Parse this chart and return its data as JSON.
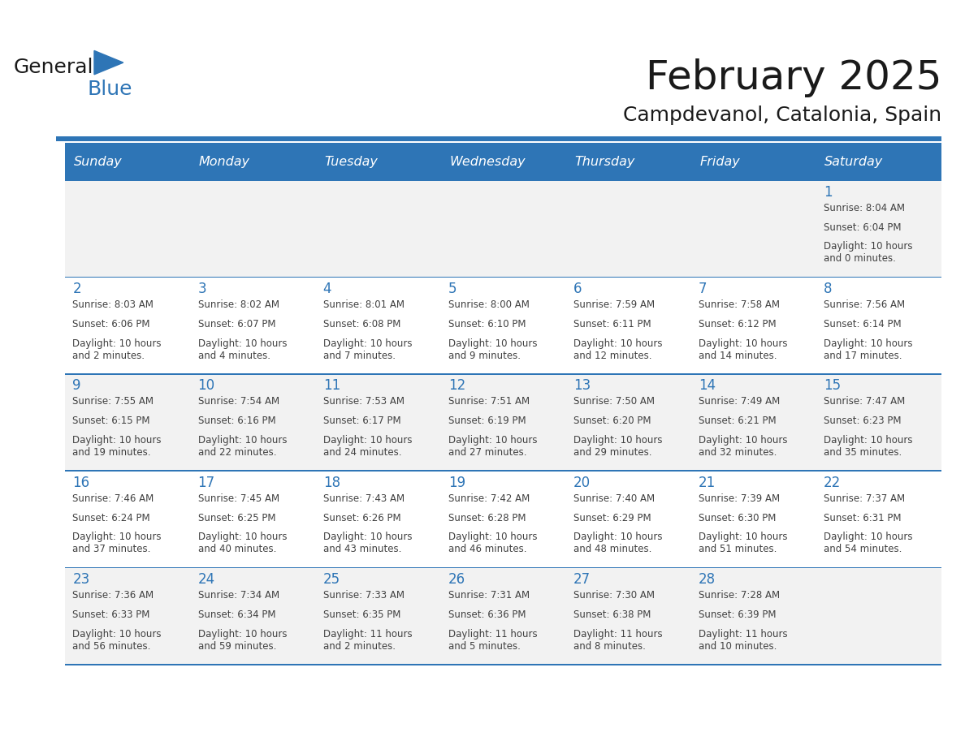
{
  "title": "February 2025",
  "subtitle": "Campdevanol, Catalonia, Spain",
  "days_of_week": [
    "Sunday",
    "Monday",
    "Tuesday",
    "Wednesday",
    "Thursday",
    "Friday",
    "Saturday"
  ],
  "header_bg": "#2E75B6",
  "header_text": "#FFFFFF",
  "cell_bg_light": "#FFFFFF",
  "cell_bg_dark": "#F2F2F2",
  "border_color": "#2E75B6",
  "day_number_color": "#2E75B6",
  "info_text_color": "#404040",
  "title_color": "#1a1a1a",
  "subtitle_color": "#1a1a1a",
  "calendar": [
    [
      {
        "day": null,
        "sunrise": null,
        "sunset": null,
        "daylight": null
      },
      {
        "day": null,
        "sunrise": null,
        "sunset": null,
        "daylight": null
      },
      {
        "day": null,
        "sunrise": null,
        "sunset": null,
        "daylight": null
      },
      {
        "day": null,
        "sunrise": null,
        "sunset": null,
        "daylight": null
      },
      {
        "day": null,
        "sunrise": null,
        "sunset": null,
        "daylight": null
      },
      {
        "day": null,
        "sunrise": null,
        "sunset": null,
        "daylight": null
      },
      {
        "day": 1,
        "sunrise": "8:04 AM",
        "sunset": "6:04 PM",
        "daylight": "10 hours\nand 0 minutes."
      }
    ],
    [
      {
        "day": 2,
        "sunrise": "8:03 AM",
        "sunset": "6:06 PM",
        "daylight": "10 hours\nand 2 minutes."
      },
      {
        "day": 3,
        "sunrise": "8:02 AM",
        "sunset": "6:07 PM",
        "daylight": "10 hours\nand 4 minutes."
      },
      {
        "day": 4,
        "sunrise": "8:01 AM",
        "sunset": "6:08 PM",
        "daylight": "10 hours\nand 7 minutes."
      },
      {
        "day": 5,
        "sunrise": "8:00 AM",
        "sunset": "6:10 PM",
        "daylight": "10 hours\nand 9 minutes."
      },
      {
        "day": 6,
        "sunrise": "7:59 AM",
        "sunset": "6:11 PM",
        "daylight": "10 hours\nand 12 minutes."
      },
      {
        "day": 7,
        "sunrise": "7:58 AM",
        "sunset": "6:12 PM",
        "daylight": "10 hours\nand 14 minutes."
      },
      {
        "day": 8,
        "sunrise": "7:56 AM",
        "sunset": "6:14 PM",
        "daylight": "10 hours\nand 17 minutes."
      }
    ],
    [
      {
        "day": 9,
        "sunrise": "7:55 AM",
        "sunset": "6:15 PM",
        "daylight": "10 hours\nand 19 minutes."
      },
      {
        "day": 10,
        "sunrise": "7:54 AM",
        "sunset": "6:16 PM",
        "daylight": "10 hours\nand 22 minutes."
      },
      {
        "day": 11,
        "sunrise": "7:53 AM",
        "sunset": "6:17 PM",
        "daylight": "10 hours\nand 24 minutes."
      },
      {
        "day": 12,
        "sunrise": "7:51 AM",
        "sunset": "6:19 PM",
        "daylight": "10 hours\nand 27 minutes."
      },
      {
        "day": 13,
        "sunrise": "7:50 AM",
        "sunset": "6:20 PM",
        "daylight": "10 hours\nand 29 minutes."
      },
      {
        "day": 14,
        "sunrise": "7:49 AM",
        "sunset": "6:21 PM",
        "daylight": "10 hours\nand 32 minutes."
      },
      {
        "day": 15,
        "sunrise": "7:47 AM",
        "sunset": "6:23 PM",
        "daylight": "10 hours\nand 35 minutes."
      }
    ],
    [
      {
        "day": 16,
        "sunrise": "7:46 AM",
        "sunset": "6:24 PM",
        "daylight": "10 hours\nand 37 minutes."
      },
      {
        "day": 17,
        "sunrise": "7:45 AM",
        "sunset": "6:25 PM",
        "daylight": "10 hours\nand 40 minutes."
      },
      {
        "day": 18,
        "sunrise": "7:43 AM",
        "sunset": "6:26 PM",
        "daylight": "10 hours\nand 43 minutes."
      },
      {
        "day": 19,
        "sunrise": "7:42 AM",
        "sunset": "6:28 PM",
        "daylight": "10 hours\nand 46 minutes."
      },
      {
        "day": 20,
        "sunrise": "7:40 AM",
        "sunset": "6:29 PM",
        "daylight": "10 hours\nand 48 minutes."
      },
      {
        "day": 21,
        "sunrise": "7:39 AM",
        "sunset": "6:30 PM",
        "daylight": "10 hours\nand 51 minutes."
      },
      {
        "day": 22,
        "sunrise": "7:37 AM",
        "sunset": "6:31 PM",
        "daylight": "10 hours\nand 54 minutes."
      }
    ],
    [
      {
        "day": 23,
        "sunrise": "7:36 AM",
        "sunset": "6:33 PM",
        "daylight": "10 hours\nand 56 minutes."
      },
      {
        "day": 24,
        "sunrise": "7:34 AM",
        "sunset": "6:34 PM",
        "daylight": "10 hours\nand 59 minutes."
      },
      {
        "day": 25,
        "sunrise": "7:33 AM",
        "sunset": "6:35 PM",
        "daylight": "11 hours\nand 2 minutes."
      },
      {
        "day": 26,
        "sunrise": "7:31 AM",
        "sunset": "6:36 PM",
        "daylight": "11 hours\nand 5 minutes."
      },
      {
        "day": 27,
        "sunrise": "7:30 AM",
        "sunset": "6:38 PM",
        "daylight": "11 hours\nand 8 minutes."
      },
      {
        "day": 28,
        "sunrise": "7:28 AM",
        "sunset": "6:39 PM",
        "daylight": "11 hours\nand 10 minutes."
      },
      {
        "day": null,
        "sunrise": null,
        "sunset": null,
        "daylight": null
      }
    ]
  ],
  "logo_text_general": "General",
  "logo_text_blue": "Blue",
  "logo_color_general": "#1a1a1a",
  "logo_color_blue": "#2E75B6",
  "logo_triangle_color": "#2E75B6"
}
